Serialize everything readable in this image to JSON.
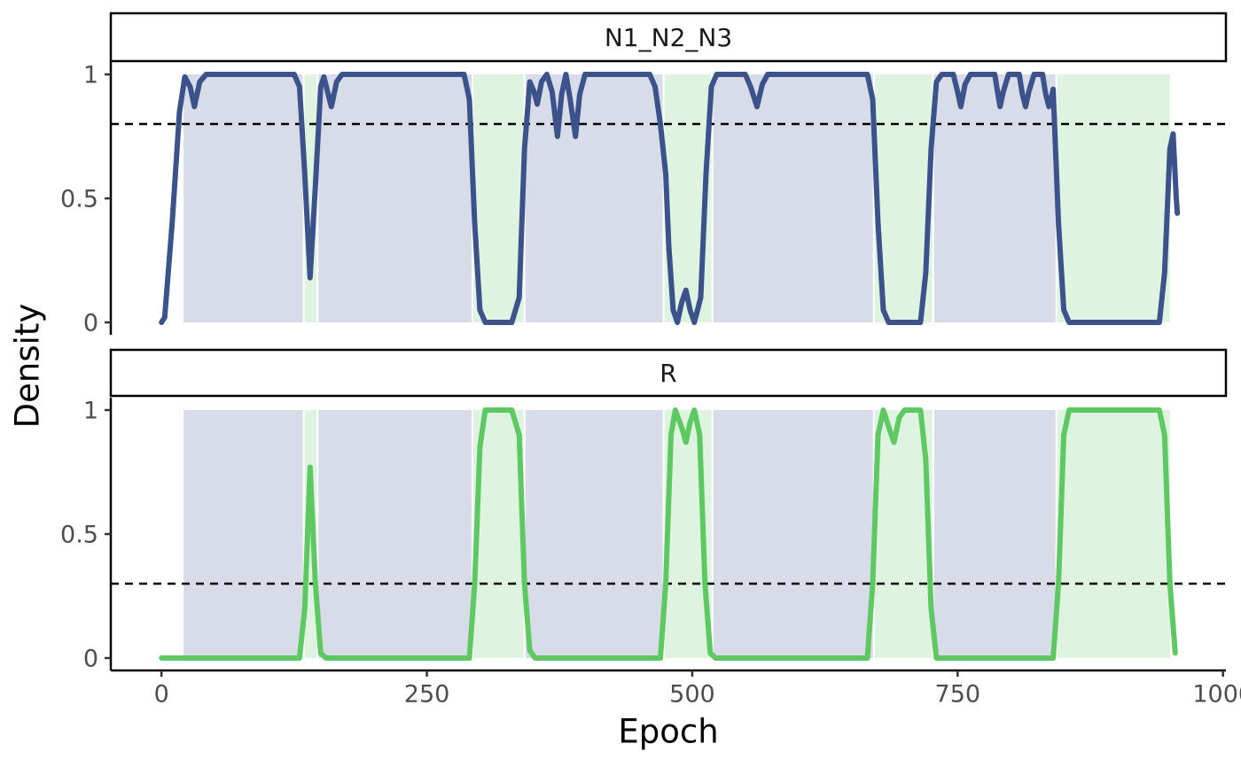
{
  "chart_data": {
    "type": "line",
    "x_label": "Epoch",
    "y_label": "Density",
    "xlim": [
      -47.75,
      1002.75
    ],
    "xticks": [
      0,
      250,
      500,
      750,
      1000
    ],
    "ylim": [
      -0.05,
      1.05
    ],
    "yticks": [
      0,
      0.5,
      1
    ],
    "series": [
      {
        "name": "N1_N2_N3",
        "color": "#3b528b",
        "threshold": 0.8,
        "intervals": [
          [
            20,
            134
          ],
          [
            147,
            293
          ],
          [
            342,
            473
          ],
          [
            519,
            671
          ],
          [
            727,
            843
          ]
        ],
        "x": [
          0,
          3,
          10,
          17,
          22,
          27,
          31,
          36,
          42,
          125,
          130,
          135,
          140,
          145,
          150,
          153,
          157,
          160,
          165,
          170,
          285,
          290,
          295,
          300,
          305,
          330,
          337,
          342,
          347,
          351,
          354,
          358,
          363,
          368,
          373,
          377,
          381,
          385,
          390,
          394,
          399,
          460,
          465,
          470,
          475,
          478,
          482,
          486,
          490,
          494,
          498,
          502,
          508,
          513,
          518,
          523,
          550,
          555,
          561,
          566,
          571,
          665,
          670,
          675,
          680,
          685,
          715,
          720,
          725,
          730,
          735,
          746,
          750,
          753,
          757,
          762,
          785,
          788,
          790,
          793,
          798,
          808,
          811,
          814,
          817,
          822,
          830,
          833,
          836,
          838,
          840,
          845,
          850,
          855,
          940,
          945,
          950,
          953,
          956,
          957
        ],
        "values": [
          0,
          0.02,
          0.4,
          0.85,
          0.99,
          0.95,
          0.87,
          0.97,
          1,
          1,
          0.95,
          0.6,
          0.18,
          0.55,
          0.95,
          0.99,
          0.92,
          0.87,
          0.97,
          1,
          1,
          0.9,
          0.4,
          0.05,
          0,
          0,
          0.1,
          0.7,
          0.97,
          0.93,
          0.88,
          0.97,
          1,
          0.93,
          0.75,
          0.92,
          1,
          0.9,
          0.75,
          0.92,
          1,
          1,
          0.95,
          0.8,
          0.6,
          0.3,
          0.05,
          0,
          0.08,
          0.13,
          0.05,
          0,
          0.1,
          0.6,
          0.95,
          1,
          1,
          0.95,
          0.87,
          0.96,
          1,
          1,
          0.9,
          0.4,
          0.05,
          0,
          0,
          0.2,
          0.7,
          0.97,
          1,
          1,
          0.93,
          0.87,
          0.96,
          1,
          1,
          0.92,
          0.87,
          0.93,
          1,
          1,
          0.92,
          0.87,
          0.93,
          1,
          1,
          0.92,
          0.87,
          0.9,
          0.94,
          0.4,
          0.05,
          0,
          0,
          0.2,
          0.7,
          0.76,
          0.5,
          0.44
        ]
      },
      {
        "name": "R",
        "color": "#5ec962",
        "threshold": 0.3,
        "intervals": [
          [
            134,
            147
          ],
          [
            293,
            342
          ],
          [
            473,
            519
          ],
          [
            671,
            727
          ],
          [
            843,
            951
          ]
        ],
        "x": [
          0,
          130,
          135,
          140,
          145,
          150,
          155,
          290,
          295,
          300,
          305,
          330,
          337,
          342,
          347,
          352,
          470,
          475,
          480,
          484,
          490,
          494,
          498,
          502,
          507,
          512,
          517,
          522,
          665,
          670,
          675,
          680,
          686,
          690,
          695,
          700,
          715,
          720,
          725,
          730,
          840,
          845,
          850,
          855,
          940,
          945,
          950,
          955
        ],
        "values": [
          0,
          0,
          0.2,
          0.77,
          0.3,
          0.02,
          0,
          0,
          0.3,
          0.85,
          1,
          1,
          0.9,
          0.3,
          0.03,
          0,
          0,
          0.3,
          0.9,
          1,
          0.93,
          0.87,
          0.95,
          1,
          0.9,
          0.3,
          0.02,
          0,
          0,
          0.3,
          0.9,
          1,
          0.92,
          0.87,
          0.97,
          1,
          1,
          0.8,
          0.2,
          0,
          0,
          0.3,
          0.9,
          1,
          1,
          0.9,
          0.3,
          0.02
        ]
      }
    ]
  }
}
